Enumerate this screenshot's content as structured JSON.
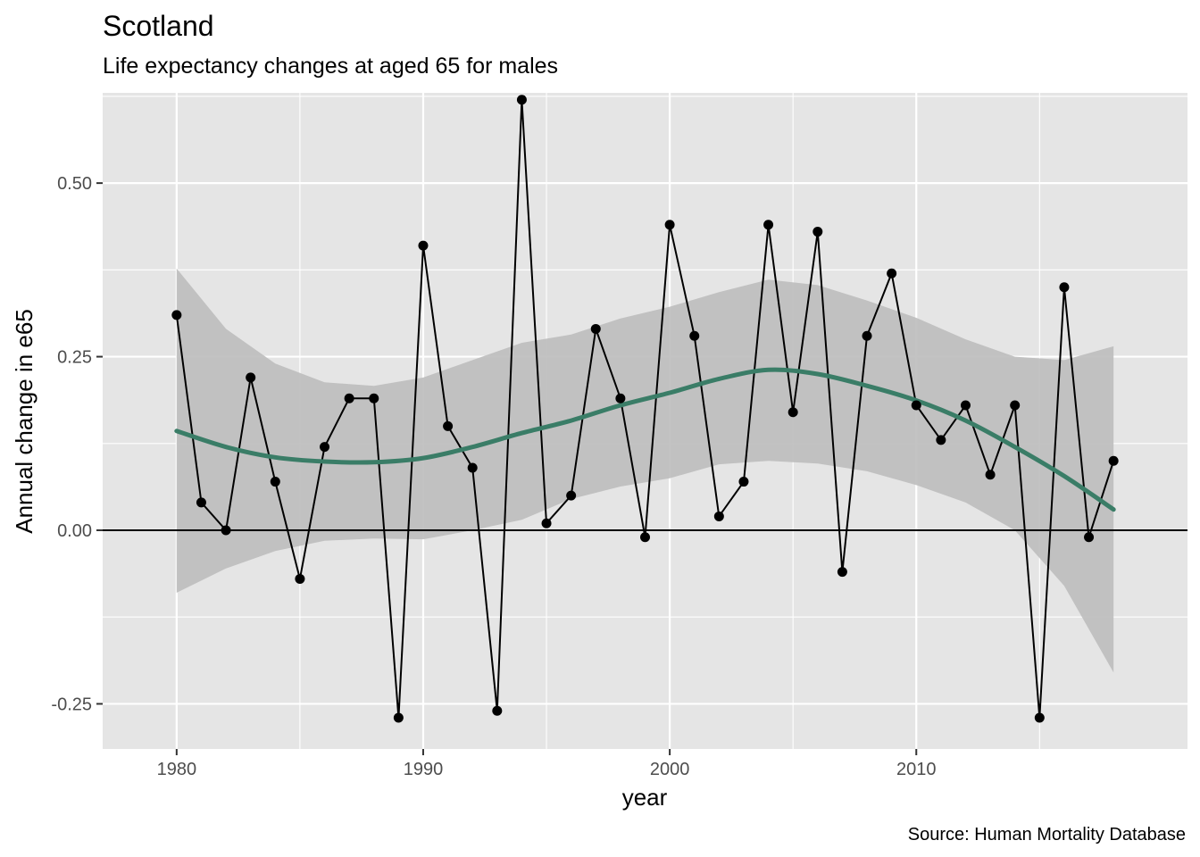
{
  "chart_data": {
    "type": "line",
    "title": "Scotland",
    "subtitle": "Life expectancy changes at aged 65 for males",
    "xlabel": "year",
    "ylabel": "Annual change in e65",
    "caption": "Source: Human Mortality Database",
    "xlim": [
      1977,
      2021
    ],
    "ylim": [
      -0.315,
      0.63
    ],
    "x_ticks": [
      1980,
      1990,
      2000,
      2010
    ],
    "x_tick_labels": [
      "1980",
      "1990",
      "2000",
      "2010"
    ],
    "y_ticks": [
      -0.25,
      0,
      0.25,
      0.5
    ],
    "y_tick_labels": [
      "-0.25",
      "0.00",
      "0.25",
      "0.50"
    ],
    "grid": true,
    "reference_line_y": 0,
    "series": [
      {
        "x": [
          1980,
          1981,
          1982,
          1983,
          1984,
          1985,
          1986,
          1987,
          1988,
          1989,
          1990,
          1991,
          1992,
          1993,
          1994,
          1995,
          1996,
          1997,
          1998,
          1999,
          2000,
          2001,
          2002,
          2003,
          2004,
          2005,
          2006,
          2007,
          2008,
          2009,
          2010,
          2011,
          2012,
          2013,
          2014,
          2015,
          2016,
          2017,
          2018
        ],
        "values": [
          0.31,
          0.04,
          0.0,
          0.22,
          0.07,
          -0.07,
          0.12,
          0.19,
          0.19,
          -0.27,
          0.41,
          0.15,
          0.09,
          -0.26,
          0.62,
          0.01,
          0.05,
          0.29,
          0.19,
          -0.01,
          0.44,
          0.28,
          0.02,
          0.07,
          0.44,
          0.17,
          0.43,
          -0.06,
          0.28,
          0.37,
          0.18,
          0.13,
          0.18,
          0.08,
          0.18,
          -0.27,
          0.35,
          -0.01,
          0.1
        ],
        "color": "#000000"
      }
    ],
    "smooth": {
      "color": "#3a7d67",
      "band_color": "#bdbdbd",
      "x": [
        1980,
        1982,
        1984,
        1986,
        1988,
        1990,
        1992,
        1994,
        1996,
        1998,
        2000,
        2002,
        2004,
        2006,
        2008,
        2010,
        2012,
        2014,
        2016,
        2018
      ],
      "fit": [
        0.143,
        0.12,
        0.105,
        0.099,
        0.098,
        0.104,
        0.12,
        0.14,
        0.158,
        0.18,
        0.198,
        0.218,
        0.231,
        0.225,
        0.208,
        0.187,
        0.158,
        0.12,
        0.078,
        0.03
      ],
      "lower": [
        -0.09,
        -0.055,
        -0.03,
        -0.015,
        -0.012,
        -0.013,
        0.0,
        0.015,
        0.045,
        0.063,
        0.075,
        0.095,
        0.1,
        0.096,
        0.085,
        0.065,
        0.04,
        0.0,
        -0.08,
        -0.205
      ],
      "upper": [
        0.377,
        0.29,
        0.24,
        0.213,
        0.208,
        0.22,
        0.245,
        0.27,
        0.282,
        0.305,
        0.322,
        0.343,
        0.361,
        0.353,
        0.331,
        0.306,
        0.275,
        0.25,
        0.245,
        0.265
      ]
    },
    "colors": {
      "panel_background": "#e5e5e5",
      "grid_major": "#ffffff",
      "points": "#000000",
      "smooth_line": "#3a7d67",
      "confidence_band": "#bdbdbd"
    }
  }
}
